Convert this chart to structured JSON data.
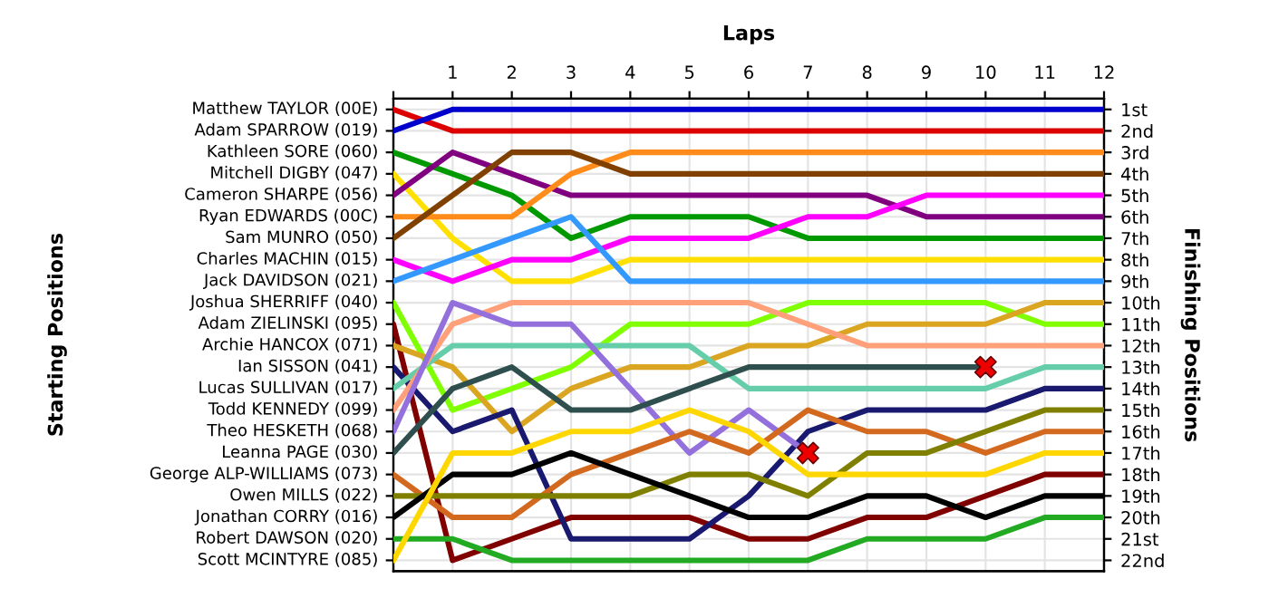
{
  "chart_data": {
    "type": "line",
    "xlabel": "Laps",
    "y2label": "Finishing Positions",
    "x": [
      0,
      1,
      2,
      3,
      4,
      5,
      6,
      7,
      8,
      9,
      10,
      11,
      12
    ],
    "xlim": [
      0,
      12
    ],
    "xticks": [
      {
        "value": 0,
        "label": null
      },
      1,
      2,
      3,
      4,
      5,
      6,
      7,
      8,
      9,
      10,
      11,
      12
    ],
    "y2lim": [
      22.5,
      0.5
    ],
    "y2ticks": [
      {
        "value": 1,
        "label": "1st"
      },
      {
        "value": 2,
        "label": "2nd"
      },
      {
        "value": 3,
        "label": "3rd"
      },
      {
        "value": 4,
        "label": "4th"
      },
      {
        "value": 5,
        "label": "5th"
      },
      {
        "value": 6,
        "label": "6th"
      },
      {
        "value": 7,
        "label": "7th"
      },
      {
        "value": 8,
        "label": "8th"
      },
      {
        "value": 9,
        "label": "9th"
      },
      {
        "value": 10,
        "label": "10th"
      },
      {
        "value": 11,
        "label": "11th"
      },
      {
        "value": 12,
        "label": "12th"
      },
      {
        "value": 13,
        "label": "13th"
      },
      {
        "value": 14,
        "label": "14th"
      },
      {
        "value": 15,
        "label": "15th"
      },
      {
        "value": 16,
        "label": "16th"
      },
      {
        "value": 17,
        "label": "17th"
      },
      {
        "value": 18,
        "label": "18th"
      },
      {
        "value": 19,
        "label": "19th"
      },
      {
        "value": 20,
        "label": "20th"
      },
      {
        "value": 21,
        "label": "21st"
      },
      {
        "value": 22,
        "label": "22nd"
      }
    ],
    "annotations": [
      "Matthew TAYLOR (00E)",
      "Adam SPARROW (019)",
      "Kathleen SORE (060)",
      "Mitchell DIGBY (047)",
      "Cameron SHARPE (056)",
      "Ryan EDWARDS (00C)",
      "Sam MUNRO (050)",
      "Charles MACHIN (015)",
      "Jack DAVIDSON (021)",
      "Joshua SHERRIFF (040)",
      "Adam ZIELINSKI (095)",
      "Archie HANCOX (071)",
      "Ian SISSON (041)",
      "Lucas SULLIVAN (017)",
      "Todd KENNEDY (099)",
      "Theo HESKETH (068)",
      "Leanna PAGE (030)",
      "George ALP-WILLIAMS (073)",
      "Owen MILLS (022)",
      "Jonathan CORRY (016)",
      "Robert DAWSON (020)",
      "Scott MCINTYRE (085)",
      "Starting Positions"
    ],
    "grid": true,
    "marker": "none",
    "line_style": "solid",
    "series": [
      {
        "axis": "y2",
        "color": "#dd0000",
        "values": [
          1,
          2,
          2,
          2,
          2,
          2,
          2,
          2,
          2,
          2,
          2,
          2,
          2
        ]
      },
      {
        "axis": "y2",
        "color": "#0000cc",
        "values": [
          2,
          1,
          1,
          1,
          1,
          1,
          1,
          1,
          1,
          1,
          1,
          1,
          1
        ]
      },
      {
        "axis": "y2",
        "color": "#009900",
        "values": [
          3,
          4,
          5,
          7,
          6,
          6,
          6,
          7,
          7,
          7,
          7,
          7,
          7
        ]
      },
      {
        "axis": "y2",
        "color": "#ffe000",
        "values": [
          4,
          7,
          9,
          9,
          8,
          8,
          8,
          8,
          8,
          8,
          8,
          8,
          8
        ]
      },
      {
        "axis": "y2",
        "color": "#800080",
        "values": [
          5,
          3,
          4,
          5,
          5,
          5,
          5,
          5,
          5,
          6,
          6,
          6,
          6
        ]
      },
      {
        "axis": "y2",
        "color": "#ff8c1a",
        "values": [
          6,
          6,
          6,
          4,
          3,
          3,
          3,
          3,
          3,
          3,
          3,
          3,
          3
        ]
      },
      {
        "axis": "y2",
        "color": "#804000",
        "values": [
          7,
          5,
          3,
          3,
          4,
          4,
          4,
          4,
          4,
          4,
          4,
          4,
          4
        ]
      },
      {
        "axis": "y2",
        "color": "#ff00ff",
        "values": [
          8,
          9,
          8,
          8,
          7,
          7,
          7,
          6,
          6,
          5,
          5,
          5,
          5
        ]
      },
      {
        "axis": "y2",
        "color": "#3399ff",
        "values": [
          9,
          8,
          7,
          6,
          9,
          9,
          9,
          9,
          9,
          9,
          9,
          9,
          9
        ]
      },
      {
        "axis": "y2",
        "color": "#80ff00",
        "values": [
          10,
          15,
          14,
          13,
          11,
          11,
          11,
          10,
          10,
          10,
          10,
          11,
          11
        ]
      },
      {
        "axis": "y2",
        "color": "#800000",
        "values": [
          11,
          22,
          21,
          20,
          20,
          20,
          21,
          21,
          20,
          20,
          19,
          18,
          18
        ]
      },
      {
        "axis": "y2",
        "color": "#daa520",
        "values": [
          12,
          13,
          16,
          14,
          13,
          13,
          12,
          12,
          11,
          11,
          11,
          10,
          10
        ]
      },
      {
        "axis": "y2",
        "color": "#191970",
        "values": [
          13,
          16,
          15,
          21,
          21,
          21,
          19,
          16,
          15,
          15,
          15,
          14,
          14
        ]
      },
      {
        "axis": "y2",
        "color": "#66cdaa",
        "values": [
          14,
          12,
          12,
          12,
          12,
          12,
          14,
          14,
          14,
          14,
          14,
          13,
          13
        ]
      },
      {
        "axis": "y2",
        "color": "#ffa07a",
        "values": [
          15,
          11,
          10,
          10,
          10,
          10,
          10,
          11,
          12,
          12,
          12,
          12,
          12
        ]
      },
      {
        "axis": "y2",
        "color": "#9370db",
        "values": [
          16,
          10,
          11,
          11,
          14,
          17,
          15,
          17,
          null,
          null,
          null,
          null,
          null
        ]
      },
      {
        "axis": "y2",
        "color": "#2f4f4f",
        "values": [
          17,
          14,
          13,
          15,
          15,
          14,
          13,
          13,
          13,
          13,
          13,
          null,
          null
        ]
      },
      {
        "axis": "y2",
        "color": "#d2691e",
        "values": [
          18,
          20,
          20,
          18,
          17,
          16,
          17,
          15,
          16,
          16,
          17,
          16,
          16
        ]
      },
      {
        "axis": "y2",
        "color": "#808000",
        "values": [
          19,
          19,
          19,
          19,
          19,
          18,
          18,
          19,
          17,
          17,
          16,
          15,
          15
        ]
      },
      {
        "axis": "y2",
        "color": "#000000",
        "values": [
          20,
          18,
          18,
          17,
          18,
          19,
          20,
          20,
          19,
          19,
          20,
          19,
          19
        ]
      },
      {
        "axis": "y2",
        "color": "#22aa22",
        "values": [
          21,
          21,
          22,
          22,
          22,
          22,
          22,
          22,
          21,
          21,
          21,
          20,
          20
        ]
      },
      {
        "axis": "y2",
        "color": "#ffd700",
        "values": [
          22,
          17,
          17,
          16,
          16,
          15,
          16,
          18,
          18,
          18,
          18,
          17,
          17
        ]
      },
      {
        "type": "scatter",
        "axis": "y2",
        "marker": "cross",
        "color": "#ee0000",
        "x": [
          7,
          10
        ],
        "values": [
          17,
          13
        ]
      }
    ]
  }
}
